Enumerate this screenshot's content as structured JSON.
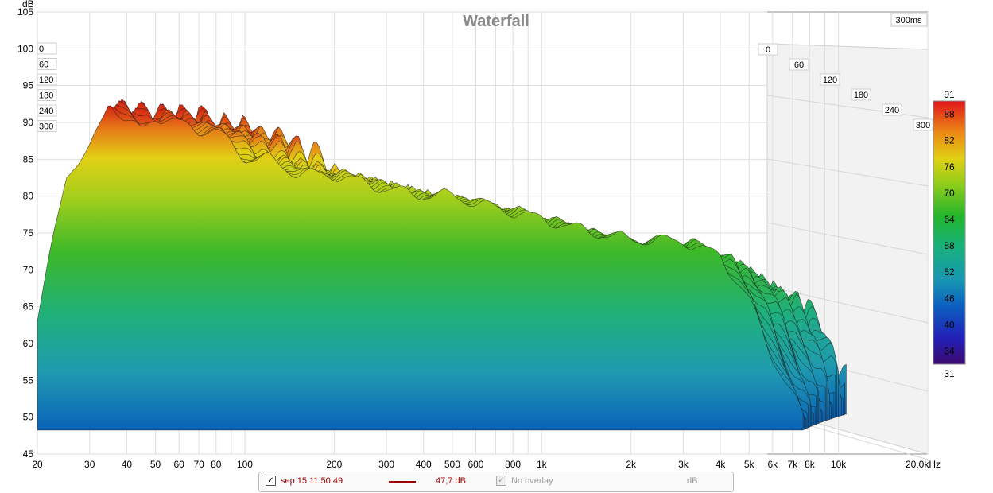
{
  "chart_data": {
    "type": "waterfall",
    "title": "Waterfall",
    "time_window_label": "300ms",
    "y_unit": "dB",
    "y_ticks": [
      "105",
      "100",
      "95",
      "90",
      "85",
      "80",
      "75",
      "70",
      "65",
      "60",
      "55",
      "50",
      "45"
    ],
    "ylim": [
      45,
      105
    ],
    "x_ticks": [
      "20",
      "30",
      "40",
      "50",
      "60",
      "70",
      "80",
      "100",
      "200",
      "300",
      "400",
      "500",
      "600",
      "800",
      "1k",
      "2k",
      "3k",
      "4k",
      "5k",
      "6k",
      "7k",
      "8k",
      "10k",
      "20,0kHz"
    ],
    "x_tick_values": [
      20,
      30,
      40,
      50,
      60,
      70,
      80,
      100,
      200,
      300,
      400,
      500,
      600,
      800,
      1000,
      2000,
      3000,
      4000,
      5000,
      6000,
      7000,
      8000,
      10000,
      20000
    ],
    "x_scale": "log",
    "xlim": [
      20,
      20000
    ],
    "time_ticks_left": [
      "0",
      "60",
      "120",
      "180",
      "240",
      "300"
    ],
    "time_ticks_right": [
      "0",
      "60",
      "120",
      "180",
      "240",
      "300"
    ],
    "time_unit": "ms",
    "colorbar": {
      "min": 31,
      "max": 91,
      "ticks": [
        "91",
        "88",
        "82",
        "76",
        "70",
        "64",
        "58",
        "52",
        "46",
        "40",
        "34",
        "31"
      ]
    },
    "grid": true,
    "front_slice": {
      "freq_hz": [
        20,
        25,
        30,
        35,
        40,
        45,
        50,
        60,
        70,
        80,
        100,
        120,
        150,
        200,
        250,
        300,
        400,
        500,
        600,
        800,
        1000,
        1500,
        2000,
        3000,
        4000,
        5000,
        6000,
        7000,
        7600
      ],
      "level_db": [
        63,
        83,
        86,
        93,
        90,
        89,
        91,
        90,
        89,
        89,
        85,
        85,
        83,
        83,
        82,
        81,
        80,
        80,
        79,
        78,
        77,
        75,
        74,
        74,
        72,
        66,
        58,
        53,
        50
      ]
    }
  },
  "legend": {
    "measurement_checked": true,
    "measurement_label": "sep 15 11:50:49",
    "measurement_value": "47,7 dB",
    "overlay_checked": true,
    "overlay_label": "No overlay",
    "unit": "dB"
  }
}
